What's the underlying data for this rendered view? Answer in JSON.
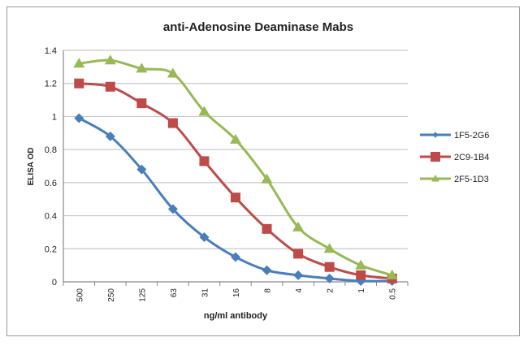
{
  "chart_data": {
    "type": "line",
    "title": "anti-Adenosine Deaminase Mabs",
    "xlabel": "ng/ml antibody",
    "ylabel": "ELISA OD",
    "categories": [
      "500",
      "250",
      "125",
      "63",
      "31",
      "16",
      "8",
      "4",
      "2",
      "1",
      "0.5"
    ],
    "ylim": [
      0,
      1.4
    ],
    "yticks": [
      "0",
      "0.2",
      "0.4",
      "0.6",
      "0.8",
      "1",
      "1.2",
      "1.4"
    ],
    "grid": true,
    "legend_position": "right",
    "series": [
      {
        "name": "1F5-2G6",
        "color": "#4a7ebb",
        "marker": "diamond",
        "values": [
          0.99,
          0.88,
          0.68,
          0.44,
          0.27,
          0.15,
          0.07,
          0.04,
          0.02,
          0.005,
          0.005
        ]
      },
      {
        "name": "2C9-1B4",
        "color": "#be4b48",
        "marker": "square",
        "values": [
          1.2,
          1.18,
          1.08,
          0.96,
          0.73,
          0.51,
          0.32,
          0.17,
          0.09,
          0.04,
          0.02
        ]
      },
      {
        "name": "2F5-1D3",
        "color": "#98b954",
        "marker": "triangle",
        "values": [
          1.32,
          1.34,
          1.29,
          1.26,
          1.03,
          0.86,
          0.62,
          0.33,
          0.2,
          0.1,
          0.04
        ]
      }
    ]
  }
}
